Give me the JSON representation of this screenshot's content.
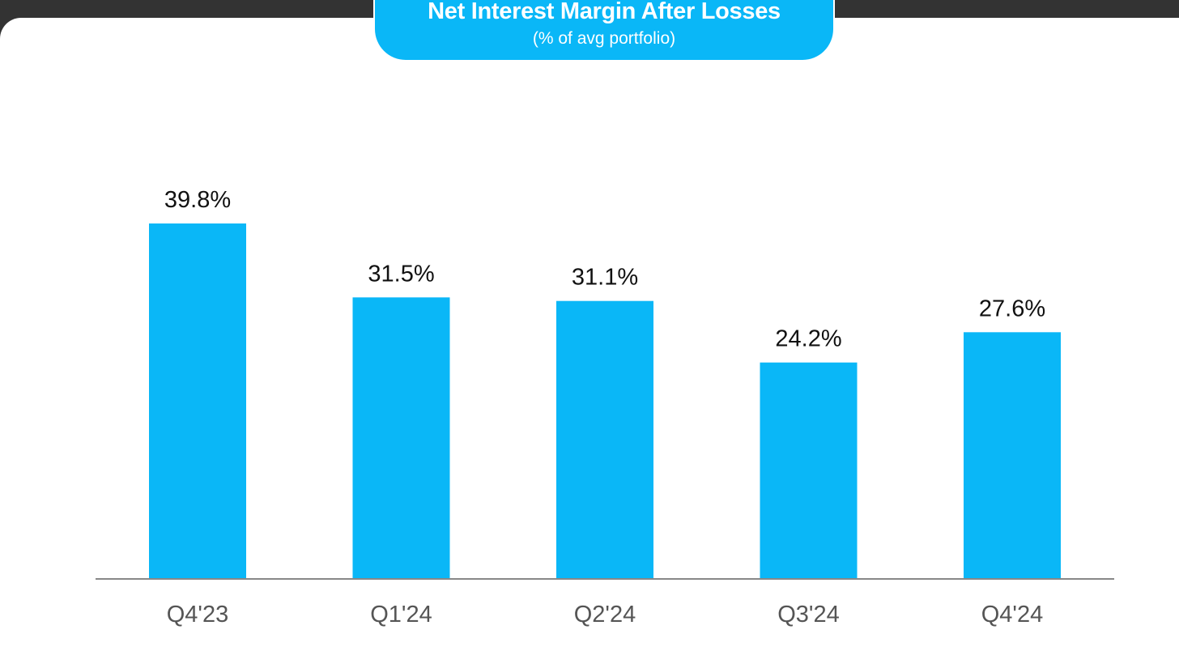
{
  "chart_data": {
    "type": "bar",
    "title": "Net Interest Margin After Losses",
    "subtitle": "(% of avg portfolio)",
    "categories": [
      "Q4'23",
      "Q1'24",
      "Q2'24",
      "Q3'24",
      "Q4'24"
    ],
    "values": [
      39.8,
      31.5,
      31.1,
      24.2,
      27.6
    ],
    "value_labels": [
      "39.8%",
      "31.5%",
      "31.1%",
      "24.2%",
      "27.6%"
    ],
    "xlabel": "",
    "ylabel": "",
    "ylim": [
      0,
      39.8
    ],
    "grid": false,
    "legend": "none",
    "colors": {
      "bar": "#0ab7f7",
      "axis": "#888888",
      "title_bg": "#0ab7f7",
      "frame_bg": "#333333"
    }
  }
}
